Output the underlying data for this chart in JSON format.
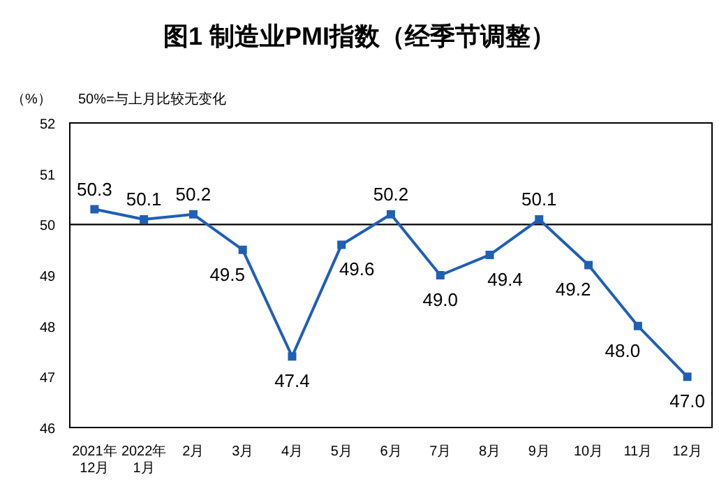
{
  "chart_data": {
    "type": "line",
    "title": "图1  制造业PMI指数（经季节调整）",
    "ylabel": "（%）",
    "annotations": [
      "50%=与上月比较无变化"
    ],
    "categories": [
      "2021年\n12月",
      "2022年\n1月",
      "2月",
      "3月",
      "4月",
      "5月",
      "6月",
      "7月",
      "8月",
      "9月",
      "10月",
      "11月",
      "12月"
    ],
    "series": [
      {
        "color": "#1f5fb4",
        "values": [
          50.3,
          50.1,
          50.2,
          49.5,
          47.4,
          49.6,
          50.2,
          49.0,
          49.4,
          50.1,
          49.2,
          48.0,
          47.0
        ],
        "value_labels": [
          "50.3",
          "50.1",
          "50.2",
          "49.5",
          "47.4",
          "49.6",
          "50.2",
          "49.0",
          "49.4",
          "50.1",
          "49.2",
          "48.0",
          "47.0"
        ]
      }
    ],
    "ylim": [
      46,
      52
    ],
    "yticks": [
      46,
      47,
      48,
      49,
      50,
      51,
      52
    ],
    "ref_lines": [
      {
        "axis": "y",
        "value": 50,
        "color": "#000000"
      }
    ],
    "marker": "square",
    "line_style": "solid",
    "grid": false
  }
}
